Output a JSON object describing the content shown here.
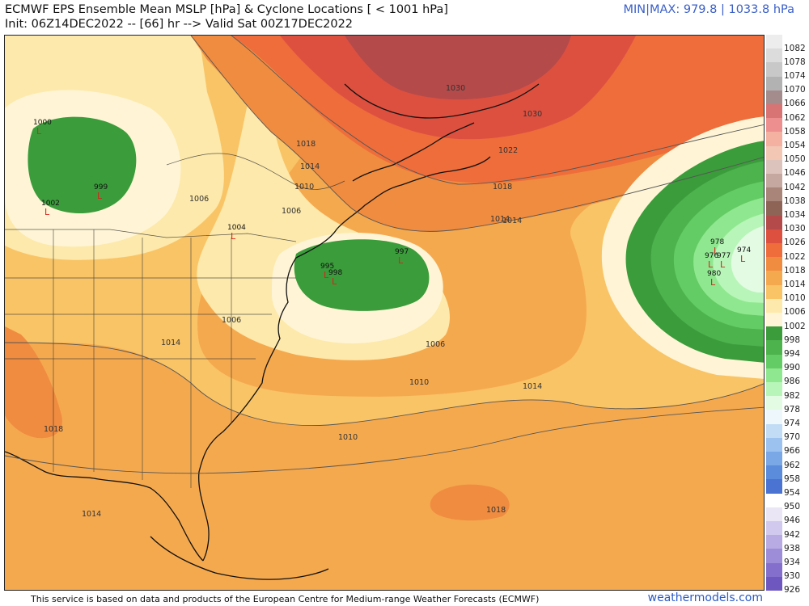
{
  "header": {
    "title": "ECMWF EPS Ensemble Mean MSLP [hPa] & Cyclone Locations [ < 1001 hPa]",
    "init": "Init: 06Z14DEC2022 -- [66] hr --> Valid Sat 00Z17DEC2022",
    "minmax": "MIN|MAX: 979.8 | 1033.8 hPa"
  },
  "colorbar": {
    "levels": [
      {
        "label": "1082",
        "color": "#ededed"
      },
      {
        "label": "1078",
        "color": "#dcdcdc"
      },
      {
        "label": "1074",
        "color": "#c8c8c8"
      },
      {
        "label": "1070",
        "color": "#b2b2b2"
      },
      {
        "label": "1066",
        "color": "#a58c8c"
      },
      {
        "label": "1062",
        "color": "#d87474"
      },
      {
        "label": "1058",
        "color": "#ee8f8f"
      },
      {
        "label": "1054",
        "color": "#f4b0a0"
      },
      {
        "label": "1050",
        "color": "#f2c7b4"
      },
      {
        "label": "1046",
        "color": "#dcc4bd"
      },
      {
        "label": "1042",
        "color": "#c5a9a1"
      },
      {
        "label": "1038",
        "color": "#a88578"
      },
      {
        "label": "1034",
        "color": "#8e6457"
      },
      {
        "label": "1030",
        "color": "#b44a4a"
      },
      {
        "label": "1026",
        "color": "#dd5040"
      },
      {
        "label": "1022",
        "color": "#ee6d3b"
      },
      {
        "label": "1018",
        "color": "#f08c40"
      },
      {
        "label": "1014",
        "color": "#f5a94e"
      },
      {
        "label": "1010",
        "color": "#f9c466"
      },
      {
        "label": "1006",
        "color": "#fde9ab"
      },
      {
        "label": "1002",
        "color": "#fff5d6"
      },
      {
        "label": "998",
        "color": "#3b9c3b"
      },
      {
        "label": "994",
        "color": "#4db34d"
      },
      {
        "label": "990",
        "color": "#64cc64"
      },
      {
        "label": "986",
        "color": "#8fe88f"
      },
      {
        "label": "982",
        "color": "#b8f5b8"
      },
      {
        "label": "978",
        "color": "#e2fbe2"
      },
      {
        "label": "974",
        "color": "#eef8fc"
      },
      {
        "label": "970",
        "color": "#c2dcf5"
      },
      {
        "label": "966",
        "color": "#9cc2ef"
      },
      {
        "label": "962",
        "color": "#7aa7e6"
      },
      {
        "label": "958",
        "color": "#5b8bdb"
      },
      {
        "label": "954",
        "color": "#4b73d2"
      },
      {
        "label": "950",
        "color": "#ffffff"
      },
      {
        "label": "946",
        "color": "#eae6f5"
      },
      {
        "label": "942",
        "color": "#d2c9ee"
      },
      {
        "label": "938",
        "color": "#b8abe4"
      },
      {
        "label": "934",
        "color": "#9d8dd8"
      },
      {
        "label": "930",
        "color": "#8470cc"
      },
      {
        "label": "926",
        "color": "#6e58c0"
      }
    ]
  },
  "map_labels": {
    "isobars": [
      "1030",
      "1030",
      "1022",
      "1018",
      "1018",
      "1014",
      "1014",
      "1014",
      "1010",
      "1010",
      "1006",
      "1006",
      "1006",
      "1006",
      "1014",
      "1014",
      "1018",
      "1018",
      "1010",
      "1014"
    ],
    "lows": [
      {
        "value": "1004",
        "letter": "L"
      },
      {
        "value": "1002",
        "letter": "L"
      },
      {
        "value": "997",
        "letter": "L"
      },
      {
        "value": "995",
        "letter": "L"
      },
      {
        "value": "998",
        "letter": "L"
      },
      {
        "value": "980",
        "letter": "L"
      },
      {
        "value": "976",
        "letter": "L"
      },
      {
        "value": "977",
        "letter": "L"
      },
      {
        "value": "974",
        "letter": "L"
      },
      {
        "value": "978",
        "letter": "L"
      },
      {
        "value": "1000",
        "letter": "L"
      },
      {
        "value": "999",
        "letter": "L"
      }
    ]
  },
  "footer": {
    "credit": "This service is based on data and products of the European Centre for Medium-range Weather Forecasts (ECMWF)",
    "site": "weathermodels.com"
  }
}
